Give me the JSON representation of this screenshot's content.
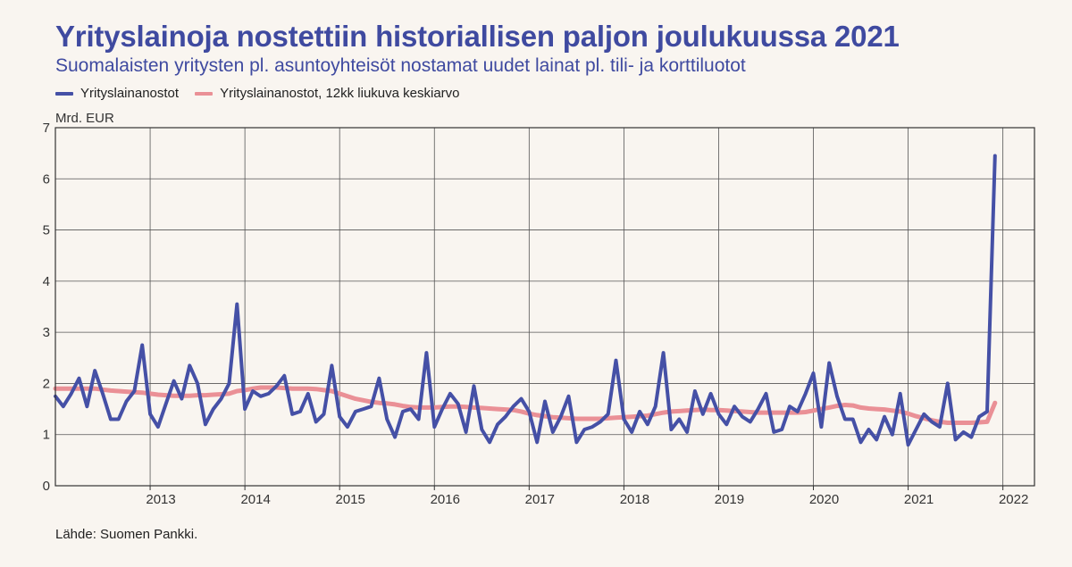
{
  "title": "Yrityslainoja nostettiin historiallisen paljon joulukuussa 2021",
  "subtitle": "Suomalaisten yritysten pl. asuntoyhteisöt nostamat uudet lainat pl. tili- ja korttiluotot",
  "source": "Lähde: Suomen Pankki.",
  "chart_data": {
    "type": "line",
    "ylabel": "Mrd. EUR",
    "ylim": [
      0,
      7
    ],
    "yticks": [
      0,
      1,
      2,
      3,
      4,
      5,
      6,
      7
    ],
    "xlim": [
      "2012-01",
      "2022-05"
    ],
    "xticks": [
      "2013",
      "2014",
      "2015",
      "2016",
      "2017",
      "2018",
      "2019",
      "2020",
      "2021",
      "2022"
    ],
    "grid": true,
    "legend_position": "top-left",
    "x_start": "2012-01",
    "x_step": "month",
    "series": [
      {
        "name": "Yrityslainanostot",
        "color": "#4550a6",
        "values": [
          1.75,
          1.55,
          1.8,
          2.1,
          1.55,
          2.25,
          1.8,
          1.3,
          1.3,
          1.65,
          1.85,
          2.75,
          1.4,
          1.15,
          1.6,
          2.05,
          1.7,
          2.35,
          2.0,
          1.2,
          1.5,
          1.7,
          2.0,
          3.55,
          1.5,
          1.85,
          1.75,
          1.8,
          1.95,
          2.15,
          1.4,
          1.45,
          1.8,
          1.25,
          1.4,
          2.35,
          1.35,
          1.15,
          1.45,
          1.5,
          1.55,
          2.1,
          1.3,
          0.95,
          1.45,
          1.5,
          1.3,
          2.6,
          1.15,
          1.5,
          1.8,
          1.6,
          1.05,
          1.95,
          1.1,
          0.85,
          1.2,
          1.35,
          1.55,
          1.7,
          1.45,
          0.85,
          1.65,
          1.05,
          1.35,
          1.75,
          0.85,
          1.1,
          1.15,
          1.25,
          1.4,
          2.45,
          1.3,
          1.05,
          1.45,
          1.2,
          1.55,
          2.6,
          1.1,
          1.3,
          1.05,
          1.85,
          1.4,
          1.8,
          1.4,
          1.2,
          1.55,
          1.35,
          1.25,
          1.5,
          1.8,
          1.05,
          1.1,
          1.55,
          1.45,
          1.8,
          2.2,
          1.15,
          2.4,
          1.75,
          1.3,
          1.3,
          0.85,
          1.1,
          0.9,
          1.35,
          1.0,
          1.8,
          0.8,
          1.1,
          1.4,
          1.25,
          1.15,
          2.0,
          0.9,
          1.05,
          0.95,
          1.35,
          1.45,
          6.45
        ]
      },
      {
        "name": "Yrityslainanostot, 12kk liukuva keskiarvo",
        "color": "#ea9096",
        "values": [
          1.9,
          1.9,
          1.9,
          1.9,
          1.9,
          1.9,
          1.88,
          1.86,
          1.85,
          1.84,
          1.83,
          1.82,
          1.8,
          1.78,
          1.77,
          1.76,
          1.76,
          1.76,
          1.77,
          1.77,
          1.78,
          1.79,
          1.8,
          1.85,
          1.87,
          1.9,
          1.92,
          1.92,
          1.92,
          1.91,
          1.9,
          1.9,
          1.9,
          1.89,
          1.87,
          1.85,
          1.8,
          1.75,
          1.7,
          1.67,
          1.64,
          1.62,
          1.61,
          1.59,
          1.56,
          1.54,
          1.53,
          1.53,
          1.53,
          1.54,
          1.55,
          1.55,
          1.54,
          1.53,
          1.52,
          1.51,
          1.5,
          1.49,
          1.48,
          1.45,
          1.41,
          1.38,
          1.36,
          1.34,
          1.33,
          1.32,
          1.31,
          1.31,
          1.31,
          1.31,
          1.32,
          1.33,
          1.34,
          1.35,
          1.36,
          1.37,
          1.4,
          1.43,
          1.45,
          1.46,
          1.47,
          1.48,
          1.49,
          1.48,
          1.48,
          1.47,
          1.46,
          1.45,
          1.44,
          1.43,
          1.43,
          1.43,
          1.43,
          1.43,
          1.43,
          1.44,
          1.47,
          1.5,
          1.53,
          1.56,
          1.58,
          1.57,
          1.53,
          1.51,
          1.5,
          1.49,
          1.47,
          1.45,
          1.41,
          1.36,
          1.32,
          1.28,
          1.25,
          1.23,
          1.23,
          1.23,
          1.23,
          1.24,
          1.25,
          1.62
        ]
      }
    ]
  }
}
